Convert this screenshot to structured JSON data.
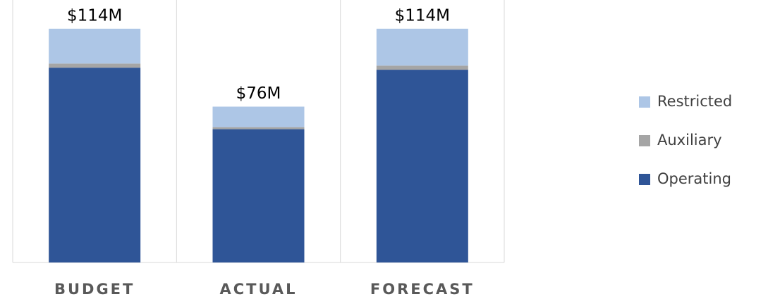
{
  "chart_data": {
    "type": "stacked_bar",
    "categories": [
      "BUDGET",
      "ACTUAL",
      "FORECAST"
    ],
    "series": [
      {
        "name": "Operating",
        "color": "#2f5597",
        "values": [
          95,
          65,
          94
        ]
      },
      {
        "name": "Auxiliary",
        "color": "#a5a5a5",
        "values": [
          2,
          1,
          2
        ]
      },
      {
        "name": "Restricted",
        "color": "#adc6e6",
        "values": [
          17,
          10,
          18
        ]
      }
    ],
    "totals": {
      "values": [
        114,
        76,
        114
      ],
      "value_labels": [
        "$114M",
        "$76M",
        "$114M"
      ]
    },
    "ylim": [
      0,
      128
    ],
    "legend": "right"
  }
}
